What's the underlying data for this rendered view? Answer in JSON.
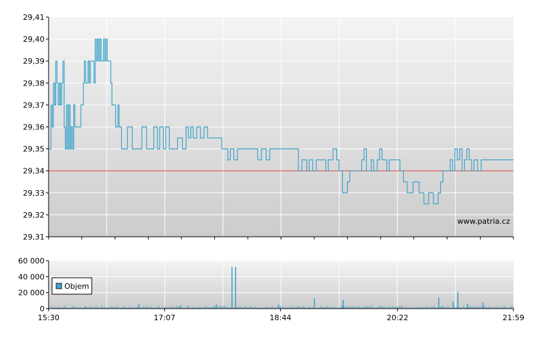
{
  "watermark": "www.patria.cz",
  "colors": {
    "price_line": "#3fa3c9",
    "reference_line": "#d63c3c",
    "volume_bar": "#3fa3c9",
    "plot_bg_top": "#f4f4f4",
    "plot_bg_bottom": "#cccccc"
  },
  "chart_data": [
    {
      "type": "line",
      "title": "",
      "xlabel": "",
      "ylabel": "",
      "x_ticks": [
        "15:30",
        "17:07",
        "18:44",
        "20:22",
        "21:59"
      ],
      "y_ticks": [
        "29,31",
        "29,32",
        "29,33",
        "29,34",
        "29,35",
        "29,36",
        "29,37",
        "29,38",
        "29,39",
        "29,40",
        "29,41"
      ],
      "ylim": [
        29.31,
        29.41
      ],
      "xlim": [
        "15:30",
        "21:59"
      ],
      "reference_line": 29.34,
      "grid": true,
      "series": [
        {
          "values": [
            [
              0,
              29.35
            ],
            [
              2,
              29.37
            ],
            [
              3,
              29.36
            ],
            [
              4,
              29.38
            ],
            [
              5,
              29.37
            ],
            [
              6,
              29.39
            ],
            [
              7,
              29.38
            ],
            [
              8,
              29.37
            ],
            [
              9,
              29.38
            ],
            [
              10,
              29.37
            ],
            [
              11,
              29.38
            ],
            [
              12,
              29.39
            ],
            [
              13,
              29.36
            ],
            [
              14,
              29.35
            ],
            [
              15,
              29.37
            ],
            [
              16,
              29.35
            ],
            [
              17,
              29.37
            ],
            [
              18,
              29.35
            ],
            [
              19,
              29.36
            ],
            [
              20,
              29.35
            ],
            [
              21,
              29.37
            ],
            [
              22,
              29.36
            ],
            [
              25,
              29.36
            ],
            [
              27,
              29.37
            ],
            [
              29,
              29.38
            ],
            [
              30,
              29.39
            ],
            [
              31,
              29.38
            ],
            [
              33,
              29.39
            ],
            [
              34,
              29.38
            ],
            [
              35,
              29.39
            ],
            [
              36,
              29.39
            ],
            [
              38,
              29.38
            ],
            [
              39,
              29.4
            ],
            [
              40,
              29.39
            ],
            [
              41,
              29.4
            ],
            [
              42,
              29.39
            ],
            [
              43,
              29.4
            ],
            [
              44,
              29.39
            ],
            [
              46,
              29.4
            ],
            [
              47,
              29.39
            ],
            [
              48,
              29.4
            ],
            [
              49,
              29.39
            ],
            [
              51,
              29.39
            ],
            [
              52,
              29.38
            ],
            [
              53,
              29.37
            ],
            [
              56,
              29.36
            ],
            [
              58,
              29.37
            ],
            [
              59,
              29.36
            ],
            [
              61,
              29.35
            ],
            [
              66,
              29.36
            ],
            [
              70,
              29.35
            ],
            [
              75,
              29.35
            ],
            [
              78,
              29.36
            ],
            [
              82,
              29.35
            ],
            [
              85,
              29.35
            ],
            [
              88,
              29.36
            ],
            [
              91,
              29.35
            ],
            [
              93,
              29.36
            ],
            [
              96,
              29.35
            ],
            [
              98,
              29.36
            ],
            [
              101,
              29.35
            ],
            [
              104,
              29.35
            ],
            [
              108,
              29.355
            ],
            [
              112,
              29.35
            ],
            [
              115,
              29.36
            ],
            [
              117,
              29.355
            ],
            [
              119,
              29.36
            ],
            [
              121,
              29.355
            ],
            [
              124,
              29.36
            ],
            [
              127,
              29.355
            ],
            [
              130,
              29.36
            ],
            [
              133,
              29.355
            ],
            [
              140,
              29.355
            ],
            [
              145,
              29.35
            ],
            [
              150,
              29.345
            ],
            [
              152,
              29.35
            ],
            [
              155,
              29.345
            ],
            [
              158,
              29.35
            ],
            [
              162,
              29.35
            ],
            [
              167,
              29.35
            ],
            [
              172,
              29.35
            ],
            [
              175,
              29.345
            ],
            [
              178,
              29.35
            ],
            [
              182,
              29.345
            ],
            [
              185,
              29.35
            ],
            [
              188,
              29.35
            ],
            [
              195,
              29.35
            ],
            [
              200,
              29.35
            ],
            [
              205,
              29.35
            ],
            [
              209,
              29.34
            ],
            [
              212,
              29.345
            ],
            [
              216,
              29.34
            ],
            [
              218,
              29.345
            ],
            [
              221,
              29.34
            ],
            [
              224,
              29.345
            ],
            [
              228,
              29.345
            ],
            [
              232,
              29.34
            ],
            [
              234,
              29.345
            ],
            [
              238,
              29.35
            ],
            [
              241,
              29.345
            ],
            [
              243,
              29.34
            ],
            [
              246,
              29.33
            ],
            [
              250,
              29.335
            ],
            [
              252,
              29.34
            ],
            [
              258,
              29.34
            ],
            [
              262,
              29.345
            ],
            [
              264,
              29.35
            ],
            [
              266,
              29.34
            ],
            [
              270,
              29.345
            ],
            [
              272,
              29.34
            ],
            [
              275,
              29.345
            ],
            [
              277,
              29.35
            ],
            [
              279,
              29.345
            ],
            [
              283,
              29.34
            ],
            [
              285,
              29.345
            ],
            [
              290,
              29.345
            ],
            [
              294,
              29.34
            ],
            [
              297,
              29.335
            ],
            [
              300,
              29.33
            ],
            [
              305,
              29.335
            ],
            [
              310,
              29.33
            ],
            [
              314,
              29.325
            ],
            [
              318,
              29.33
            ],
            [
              322,
              29.325
            ],
            [
              326,
              29.33
            ],
            [
              328,
              29.335
            ],
            [
              330,
              29.34
            ],
            [
              332,
              29.34
            ],
            [
              336,
              29.345
            ],
            [
              338,
              29.34
            ],
            [
              340,
              29.35
            ],
            [
              342,
              29.345
            ],
            [
              344,
              29.35
            ],
            [
              346,
              29.34
            ],
            [
              348,
              29.345
            ],
            [
              350,
              29.35
            ],
            [
              352,
              29.345
            ],
            [
              354,
              29.34
            ],
            [
              356,
              29.345
            ],
            [
              359,
              29.34
            ],
            [
              362,
              29.345
            ],
            [
              366,
              29.345
            ]
          ]
        }
      ]
    },
    {
      "type": "bar",
      "title": "",
      "x_ticks": [
        "15:30",
        "17:07",
        "18:44",
        "20:22",
        "21:59"
      ],
      "y_ticks": [
        "0",
        "20 000",
        "40 000",
        "60 000"
      ],
      "ylim": [
        0,
        60000
      ],
      "legend": "Objem",
      "legend_position": "left",
      "grid": true,
      "spikes": [
        {
          "minute": 153,
          "value": 52000
        },
        {
          "minute": 156,
          "value": 52000
        },
        {
          "minute": 342,
          "value": 21000
        },
        {
          "minute": 326,
          "value": 14000
        },
        {
          "minute": 338,
          "value": 9000
        },
        {
          "minute": 363,
          "value": 8000
        },
        {
          "minute": 75,
          "value": 6000
        },
        {
          "minute": 222,
          "value": 13000
        },
        {
          "minute": 246,
          "value": 11000
        },
        {
          "minute": 350,
          "value": 6000
        },
        {
          "minute": 192,
          "value": 5000
        },
        {
          "minute": 140,
          "value": 5000
        },
        {
          "minute": 30,
          "value": 3000
        },
        {
          "minute": 110,
          "value": 4000
        }
      ],
      "baseline_volume": 2500
    }
  ]
}
